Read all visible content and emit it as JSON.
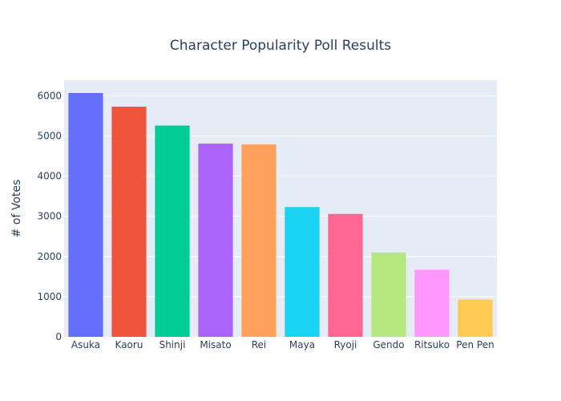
{
  "chart_data": {
    "type": "bar",
    "title": "Character Popularity Poll Results",
    "xlabel": "",
    "ylabel": "# of Votes",
    "categories": [
      "Asuka",
      "Kaoru",
      "Shinji",
      "Misato",
      "Rei",
      "Maya",
      "Ryoji",
      "Gendo",
      "Ritsuko",
      "Pen Pen"
    ],
    "values": [
      6070,
      5730,
      5260,
      4810,
      4790,
      3230,
      3060,
      2100,
      1670,
      930
    ],
    "colors": [
      "#636efa",
      "#EF553B",
      "#00cc96",
      "#ab63fa",
      "#FFA15A",
      "#19d3f3",
      "#FF6692",
      "#B6E880",
      "#FF97FF",
      "#FECB52"
    ],
    "ylim": [
      0,
      6389
    ],
    "yticks": [
      0,
      1000,
      2000,
      3000,
      4000,
      5000,
      6000
    ],
    "ytick_labels": [
      "0",
      "1000",
      "2000",
      "3000",
      "4000",
      "5000",
      "6000"
    ],
    "grid": true,
    "legend": false,
    "plot_bgcolor": "#E5ECF6",
    "gridcolor": "#ffffff",
    "text_color": "#2a3f5f"
  }
}
